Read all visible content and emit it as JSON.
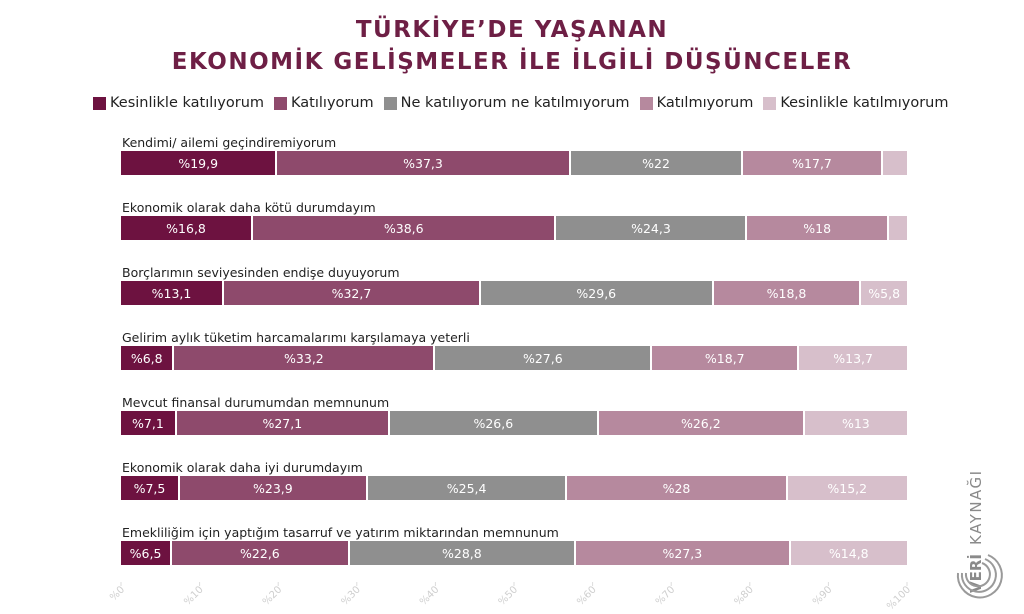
{
  "title_line1": "TÜRKİYE’DE YAŞANAN",
  "title_line2": "EKONOMİK GELİŞMELER İLE İLGİLİ DÜŞÜNCELER",
  "colors": [
    "#6d1240",
    "#8e4a6c",
    "#8f8f8f",
    "#b6899e",
    "#d7bfcb"
  ],
  "brand": {
    "text_left": "VERİ",
    "text_right": "KAYNAĞI"
  },
  "chart_data": {
    "type": "bar",
    "orientation": "horizontal-stacked-100",
    "title": "TÜRKİYE’DE YAŞANAN EKONOMİK GELİŞMELER İLE İLGİLİ DÜŞÜNCELER",
    "legend_position": "top",
    "series": [
      {
        "name": "Kesinlikle katılıyorum",
        "color": "#6d1240",
        "values": [
          19.9,
          16.8,
          13.1,
          6.8,
          7.1,
          7.5,
          6.5
        ]
      },
      {
        "name": "Katılıyorum",
        "color": "#8e4a6c",
        "values": [
          37.3,
          38.6,
          32.7,
          33.2,
          27.1,
          23.9,
          22.6
        ]
      },
      {
        "name": "Ne katılıyorum ne katılmıyorum",
        "color": "#8f8f8f",
        "values": [
          22,
          24.3,
          29.6,
          27.6,
          26.6,
          25.4,
          28.8
        ]
      },
      {
        "name": "Katılmıyorum",
        "color": "#b6899e",
        "values": [
          17.7,
          18,
          18.8,
          18.7,
          26.2,
          28,
          27.3
        ]
      },
      {
        "name": "Kesinlikle katılmıyorum",
        "color": "#d7bfcb",
        "values": [
          3.1,
          2.3,
          5.8,
          13.7,
          13,
          15.2,
          14.8
        ]
      }
    ],
    "categories": [
      "Kendimi/ ailemi geçindiremiyorum",
      "Ekonomik olarak daha kötü durumdayım",
      "Borçlarımın seviyesinden endişe duyuyorum",
      "Gelirim aylık tüketim harcamalarımı karşılamaya yeterli",
      "Mevcut finansal durumumdan memnunum",
      "Ekonomik olarak daha iyi durumdayım",
      "Emekliliğim için yaptığım tasarruf ve yatırım miktarından memnunum"
    ],
    "labels": [
      [
        "%19,9",
        "%37,3",
        "%22",
        "%17,7",
        ""
      ],
      [
        "%16,8",
        "%38,6",
        "%24,3",
        "%18",
        ""
      ],
      [
        "%13,1",
        "%32,7",
        "%29,6",
        "%18,8",
        "%5,8"
      ],
      [
        "%6,8",
        "%33,2",
        "%27,6",
        "%18,7",
        "%13,7"
      ],
      [
        "%7,1",
        "%27,1",
        "%26,6",
        "%26,2",
        "%13"
      ],
      [
        "%7,5",
        "%23,9",
        "%25,4",
        "%28",
        "%15,2"
      ],
      [
        "%6,5",
        "%22,6",
        "%28,8",
        "%27,3",
        "%14,8"
      ]
    ],
    "x_ticks": [
      "%0",
      "%10",
      "%20",
      "%30",
      "%40",
      "%50",
      "%60",
      "%70",
      "%80",
      "%90",
      "%100"
    ],
    "xlim": [
      0,
      100
    ]
  }
}
